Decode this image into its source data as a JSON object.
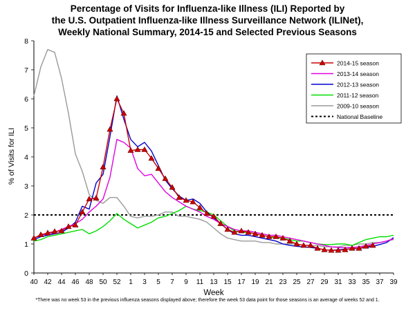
{
  "title_lines": [
    "Percentage of Visits for Influenza-like Illness (ILI) Reported by",
    "the U.S. Outpatient Influenza-like Illness Surveillance Network (ILINet),",
    "Weekly National Summary, 2014-15 and Selected Previous Seasons"
  ],
  "footnote": "*There was no week 53 in the previous influenza seasons displayed above; therefore the week 53 data point for those seasons is an average of weeks 52 and 1.",
  "chart_data": {
    "type": "line",
    "xlabel": "Week",
    "ylabel": "% of Visits for ILI",
    "ylim": [
      0,
      8
    ],
    "yticks": [
      0,
      1,
      2,
      3,
      4,
      5,
      6,
      7,
      8
    ],
    "week_tick_labels": [
      "40",
      "42",
      "44",
      "46",
      "48",
      "50",
      "52",
      "1",
      "3",
      "5",
      "7",
      "9",
      "11",
      "13",
      "15",
      "17",
      "19",
      "21",
      "23",
      "25",
      "27",
      "29",
      "31",
      "33",
      "35",
      "37",
      "39"
    ],
    "weeks": [
      "40",
      "41",
      "42",
      "43",
      "44",
      "45",
      "46",
      "47",
      "48",
      "49",
      "50",
      "51",
      "52",
      "53",
      "1",
      "2",
      "3",
      "4",
      "5",
      "6",
      "7",
      "8",
      "9",
      "10",
      "11",
      "12",
      "13",
      "14",
      "15",
      "16",
      "17",
      "18",
      "19",
      "20",
      "21",
      "22",
      "23",
      "24",
      "25",
      "26",
      "27",
      "28",
      "29",
      "30",
      "31",
      "32",
      "33",
      "34",
      "35",
      "36",
      "37",
      "38",
      "39"
    ],
    "legend_position": "top-right",
    "series": [
      {
        "name": "2014-15 season",
        "color": "#cc0000",
        "marker": "triangle",
        "values": [
          1.2,
          1.32,
          1.38,
          1.43,
          1.45,
          1.6,
          1.65,
          2.1,
          2.55,
          2.58,
          3.65,
          4.95,
          6.0,
          5.5,
          4.22,
          4.25,
          4.25,
          3.95,
          3.6,
          3.25,
          2.95,
          2.6,
          2.5,
          2.45,
          2.25,
          2.05,
          1.95,
          1.7,
          1.5,
          1.4,
          1.45,
          1.4,
          1.35,
          1.3,
          1.25,
          1.25,
          1.2,
          1.1,
          1.0,
          0.95,
          0.95,
          0.85,
          0.8,
          0.78,
          0.78,
          0.8,
          0.85,
          0.85,
          0.92,
          0.95
        ]
      },
      {
        "name": "2013-14 season",
        "color": "#e000e0",
        "marker": "none",
        "values": [
          1.2,
          1.3,
          1.35,
          1.4,
          1.5,
          1.6,
          1.7,
          1.85,
          2.1,
          2.3,
          2.55,
          3.3,
          4.6,
          4.5,
          4.3,
          3.6,
          3.35,
          3.4,
          3.1,
          2.8,
          2.6,
          2.45,
          2.3,
          2.2,
          2.1,
          1.95,
          1.85,
          1.7,
          1.6,
          1.5,
          1.45,
          1.45,
          1.4,
          1.35,
          1.3,
          1.3,
          1.25,
          1.2,
          1.15,
          1.1,
          1.05,
          1.0,
          0.95,
          0.9,
          0.88,
          0.87,
          0.88,
          0.9,
          0.95,
          1.0,
          1.05,
          1.1,
          1.18
        ]
      },
      {
        "name": "2012-13 season",
        "color": "#0000cc",
        "marker": "none",
        "values": [
          1.15,
          1.25,
          1.3,
          1.35,
          1.4,
          1.55,
          1.75,
          2.3,
          2.2,
          3.1,
          3.4,
          4.7,
          6.1,
          5.3,
          4.6,
          4.35,
          4.5,
          4.2,
          3.7,
          3.2,
          2.9,
          2.65,
          2.5,
          2.55,
          2.4,
          2.1,
          1.9,
          1.7,
          1.5,
          1.35,
          1.3,
          1.3,
          1.25,
          1.2,
          1.15,
          1.1,
          1.0,
          0.95,
          0.92,
          0.9,
          0.88,
          0.85,
          0.8,
          0.78,
          0.8,
          0.82,
          0.83,
          0.85,
          0.88,
          0.92,
          0.98,
          1.05,
          1.22
        ]
      },
      {
        "name": "2011-12 season",
        "color": "#00dd00",
        "marker": "none",
        "values": [
          1.1,
          1.15,
          1.25,
          1.3,
          1.35,
          1.4,
          1.45,
          1.5,
          1.35,
          1.45,
          1.6,
          1.8,
          2.05,
          1.85,
          1.7,
          1.55,
          1.65,
          1.75,
          1.9,
          1.95,
          2.05,
          2.15,
          2.3,
          2.2,
          2.15,
          2.1,
          2.0,
          1.8,
          1.6,
          1.45,
          1.4,
          1.4,
          1.35,
          1.3,
          1.25,
          1.2,
          1.2,
          1.15,
          1.1,
          1.1,
          1.05,
          1.0,
          0.98,
          0.98,
          1.0,
          1.0,
          0.95,
          1.05,
          1.15,
          1.2,
          1.25,
          1.25,
          1.3
        ]
      },
      {
        "name": "2009-10 season",
        "color": "#999999",
        "marker": "none",
        "values": [
          6.1,
          7.1,
          7.7,
          7.6,
          6.7,
          5.5,
          4.1,
          3.5,
          2.7,
          2.5,
          2.4,
          2.6,
          2.6,
          2.3,
          1.95,
          1.9,
          1.95,
          1.95,
          2.0,
          2.1,
          2.1,
          1.95,
          1.95,
          1.9,
          1.85,
          1.75,
          1.55,
          1.35,
          1.2,
          1.15,
          1.1,
          1.1,
          1.1,
          1.05,
          1.05,
          1.0,
          1.0,
          1.0,
          1.0,
          0.95,
          0.95,
          0.95,
          0.9,
          0.9,
          0.9,
          0.95,
          0.95,
          1.0,
          1.0,
          1.05,
          1.05,
          1.1,
          1.15
        ]
      }
    ],
    "baseline": {
      "name": "National Baseline",
      "value": 2.0,
      "style": "dotted",
      "color": "#000000"
    }
  }
}
